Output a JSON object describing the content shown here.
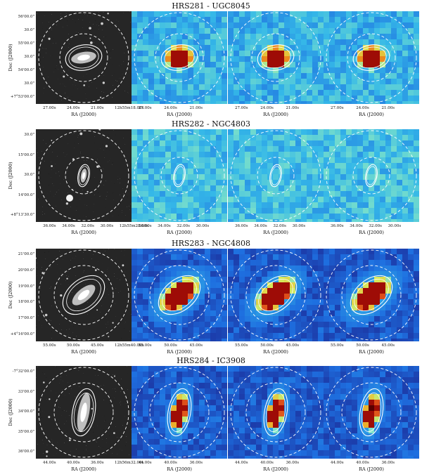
{
  "rows": [
    {
      "title": "HRS281 - UGC8045",
      "axis_y_label": "Dec (J2000)",
      "axis_x_label": "RA (J2000)",
      "y_ticks": [
        "56'00.0\"",
        "30.0\"",
        "55'00.0\"",
        "30.0\"",
        "54'00.0\"",
        "30.0\"",
        "+7°53'00.0\""
      ],
      "x_ticks_first": [
        "27.00s",
        "24.00s",
        "21.00s",
        "12h55m18.00s"
      ],
      "x_ticks_other": [
        "27.00s",
        "24.00s",
        "21.00s"
      ]
    },
    {
      "title": "HRS282 - NGC4803",
      "axis_y_label": "Dec (J2000)",
      "axis_x_label": "RA (J2000)",
      "y_ticks": [
        "30.0\"",
        "15'00.0\"",
        "30.0\"",
        "14'00.0\"",
        "+8°13'30.0\""
      ],
      "x_ticks_first": [
        "36.00s",
        "34.00s",
        "32.00s",
        "30.00s",
        "12h55m28.00s"
      ],
      "x_ticks_other": [
        "36.00s",
        "34.00s",
        "32.00s",
        "30.00s"
      ]
    },
    {
      "title": "HRS283 - NGC4808",
      "axis_y_label": "Dec (J2000)",
      "axis_x_label": "RA (J2000)",
      "y_ticks": [
        "21'00.0\"",
        "20'00.0\"",
        "19'00.0\"",
        "18'00.0\"",
        "17'00.0\"",
        "+4°16'00.0\""
      ],
      "x_ticks_first": [
        "55.00s",
        "50.00s",
        "45.00s",
        "12h55m40.00s"
      ],
      "x_ticks_other": [
        "55.00s",
        "50.00s",
        "45.00s"
      ]
    },
    {
      "title": "HRS284 - IC3908",
      "axis_y_label": "Dec (J2000)",
      "axis_x_label": "RA (J2000)",
      "y_ticks": [
        "-7°32'00.0\"",
        "33'00.0\"",
        "34'00.0\"",
        "35'00.0\"",
        "36'00.0\""
      ],
      "x_ticks_first": [
        "44.00s",
        "40.00s",
        "36.00s",
        "12h56m32.00s"
      ],
      "x_ticks_other": [
        "44.00s",
        "40.00s",
        "36.00s"
      ]
    }
  ]
}
